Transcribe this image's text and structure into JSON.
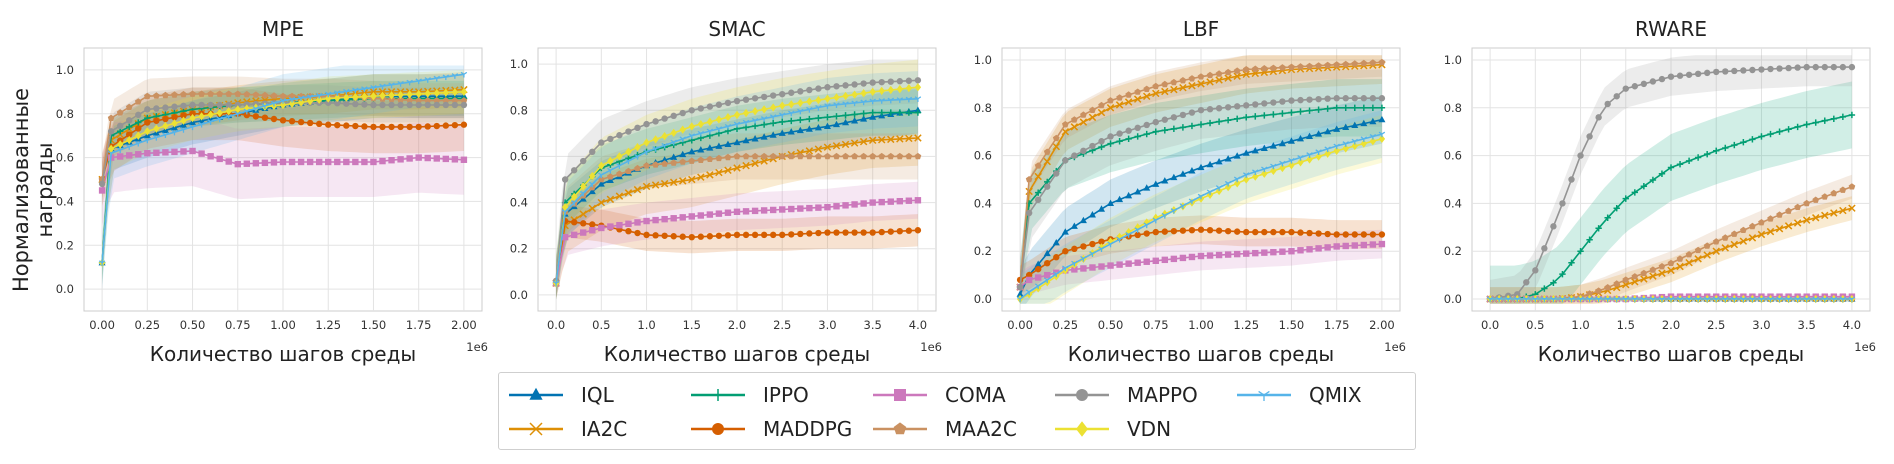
{
  "figure": {
    "ylabel_lines": [
      "Нормализованные",
      "награды"
    ],
    "colors": {
      "IQL": "#0173b2",
      "IA2C": "#de8f05",
      "IPPO": "#029e73",
      "MADDPG": "#d55e00",
      "COMA": "#cc78bc",
      "MAA2C": "#ca9161",
      "MAPPO": "#949494",
      "VDN": "#ece133",
      "QMIX": "#56b4e9"
    },
    "markers": {
      "IQL": "triangle",
      "IA2C": "x",
      "IPPO": "plus",
      "MADDPG": "circle",
      "COMA": "square",
      "MAA2C": "pentagon",
      "MAPPO": "circle",
      "VDN": "diamond",
      "QMIX": "tri-down"
    }
  },
  "legend": {
    "entries": [
      "IQL",
      "IPPO",
      "COMA",
      "MAPPO",
      "QMIX",
      "IA2C",
      "MADDPG",
      "MAA2C",
      "VDN"
    ]
  },
  "chart_data": [
    {
      "type": "line",
      "title": "MPE",
      "xlabel": "Количество шагов среды",
      "x_exponent_label": "1e6",
      "xlim": [
        -0.1,
        2.1
      ],
      "ylim": [
        -0.1,
        1.1
      ],
      "xticks": [
        0.0,
        0.25,
        0.5,
        0.75,
        1.0,
        1.25,
        1.5,
        1.75,
        2.0
      ],
      "xtick_labels": [
        "0.00",
        "0.25",
        "0.50",
        "0.75",
        "1.00",
        "1.25",
        "1.50",
        "1.75",
        "2.00"
      ],
      "yticks": [
        0.0,
        0.2,
        0.4,
        0.6,
        0.8,
        1.0
      ],
      "ytick_labels": [
        "0.0",
        "0.2",
        "0.4",
        "0.6",
        "0.8",
        "1.0"
      ],
      "grid": true,
      "x": [
        0,
        0.05,
        0.25,
        0.5,
        0.75,
        1.0,
        1.25,
        1.5,
        1.75,
        2.0
      ],
      "series": [
        {
          "name": "IQL",
          "values": [
            0.12,
            0.64,
            0.7,
            0.76,
            0.8,
            0.84,
            0.86,
            0.88,
            0.88,
            0.88
          ],
          "band": 0.1
        },
        {
          "name": "IA2C",
          "values": [
            0.5,
            0.68,
            0.78,
            0.82,
            0.85,
            0.87,
            0.88,
            0.9,
            0.9,
            0.91
          ],
          "band": 0.08
        },
        {
          "name": "IPPO",
          "values": [
            0.12,
            0.7,
            0.78,
            0.82,
            0.84,
            0.85,
            0.86,
            0.87,
            0.87,
            0.87
          ],
          "band": 0.08
        },
        {
          "name": "MADDPG",
          "values": [
            0.5,
            0.65,
            0.76,
            0.8,
            0.8,
            0.77,
            0.75,
            0.74,
            0.74,
            0.75
          ],
          "band": 0.12
        },
        {
          "name": "COMA",
          "values": [
            0.45,
            0.6,
            0.62,
            0.63,
            0.57,
            0.58,
            0.58,
            0.58,
            0.6,
            0.59
          ],
          "band": 0.16
        },
        {
          "name": "MAA2C",
          "values": [
            0.5,
            0.78,
            0.88,
            0.89,
            0.89,
            0.88,
            0.88,
            0.87,
            0.86,
            0.86
          ],
          "band": 0.08
        },
        {
          "name": "MAPPO",
          "values": [
            0.48,
            0.72,
            0.82,
            0.84,
            0.84,
            0.85,
            0.85,
            0.84,
            0.84,
            0.84
          ],
          "band": 0.08
        },
        {
          "name": "VDN",
          "values": [
            0.12,
            0.64,
            0.72,
            0.78,
            0.82,
            0.84,
            0.87,
            0.88,
            0.89,
            0.9
          ],
          "band": 0.1
        },
        {
          "name": "QMIX",
          "values": [
            0.12,
            0.62,
            0.68,
            0.74,
            0.8,
            0.86,
            0.89,
            0.92,
            0.95,
            0.98
          ],
          "band": 0.12
        }
      ]
    },
    {
      "type": "line",
      "title": "SMAC",
      "xlabel": "Количество шагов среды",
      "x_exponent_label": "1e6",
      "xlim": [
        -0.2,
        4.2
      ],
      "ylim": [
        -0.07,
        1.07
      ],
      "xticks": [
        0.0,
        0.5,
        1.0,
        1.5,
        2.0,
        2.5,
        3.0,
        3.5,
        4.0
      ],
      "xtick_labels": [
        "0.0",
        "0.5",
        "1.0",
        "1.5",
        "2.0",
        "2.5",
        "3.0",
        "3.5",
        "4.0"
      ],
      "yticks": [
        0.0,
        0.2,
        0.4,
        0.6,
        0.8,
        1.0
      ],
      "ytick_labels": [
        "0.0",
        "0.2",
        "0.4",
        "0.6",
        "0.8",
        "1.0"
      ],
      "grid": true,
      "x": [
        0,
        0.1,
        0.5,
        1.0,
        1.5,
        2.0,
        2.5,
        3.0,
        3.5,
        4.0
      ],
      "series": [
        {
          "name": "IQL",
          "values": [
            0.05,
            0.35,
            0.48,
            0.56,
            0.62,
            0.66,
            0.7,
            0.73,
            0.77,
            0.8
          ],
          "band": 0.1
        },
        {
          "name": "IA2C",
          "values": [
            0.05,
            0.3,
            0.4,
            0.47,
            0.5,
            0.55,
            0.6,
            0.64,
            0.67,
            0.68
          ],
          "band": 0.12
        },
        {
          "name": "IPPO",
          "values": [
            0.05,
            0.4,
            0.55,
            0.62,
            0.67,
            0.72,
            0.75,
            0.77,
            0.79,
            0.79
          ],
          "band": 0.1
        },
        {
          "name": "MADDPG",
          "values": [
            0.06,
            0.32,
            0.3,
            0.26,
            0.25,
            0.26,
            0.26,
            0.27,
            0.27,
            0.28
          ],
          "band": 0.07
        },
        {
          "name": "COMA",
          "values": [
            0.05,
            0.25,
            0.29,
            0.32,
            0.34,
            0.36,
            0.37,
            0.38,
            0.4,
            0.41
          ],
          "band": 0.08
        },
        {
          "name": "MAA2C",
          "values": [
            0.05,
            0.36,
            0.5,
            0.56,
            0.58,
            0.6,
            0.6,
            0.6,
            0.6,
            0.6
          ],
          "band": 0.1
        },
        {
          "name": "MAPPO",
          "values": [
            0.06,
            0.5,
            0.66,
            0.74,
            0.8,
            0.84,
            0.87,
            0.9,
            0.92,
            0.93
          ],
          "band": 0.1
        },
        {
          "name": "VDN",
          "values": [
            0.05,
            0.38,
            0.56,
            0.66,
            0.73,
            0.78,
            0.82,
            0.85,
            0.88,
            0.9
          ],
          "band": 0.12
        },
        {
          "name": "QMIX",
          "values": [
            0.05,
            0.36,
            0.52,
            0.62,
            0.69,
            0.74,
            0.78,
            0.82,
            0.84,
            0.85
          ],
          "band": 0.12
        }
      ]
    },
    {
      "type": "line",
      "title": "LBF",
      "xlabel": "Количество шагов среды",
      "x_exponent_label": "1e6",
      "xlim": [
        -0.1,
        2.1
      ],
      "ylim": [
        -0.05,
        1.05
      ],
      "xticks": [
        0.0,
        0.25,
        0.5,
        0.75,
        1.0,
        1.25,
        1.5,
        1.75,
        2.0
      ],
      "xtick_labels": [
        "0.00",
        "0.25",
        "0.50",
        "0.75",
        "1.00",
        "1.25",
        "1.50",
        "1.75",
        "2.00"
      ],
      "yticks": [
        0.0,
        0.2,
        0.4,
        0.6,
        0.8,
        1.0
      ],
      "ytick_labels": [
        "0.0",
        "0.2",
        "0.4",
        "0.6",
        "0.8",
        "1.0"
      ],
      "grid": true,
      "x": [
        0,
        0.05,
        0.25,
        0.5,
        0.75,
        1.0,
        1.25,
        1.5,
        1.75,
        2.0
      ],
      "series": [
        {
          "name": "IQL",
          "values": [
            0.02,
            0.1,
            0.28,
            0.4,
            0.48,
            0.55,
            0.61,
            0.66,
            0.71,
            0.75
          ],
          "band": 0.1
        },
        {
          "name": "IA2C",
          "values": [
            0.05,
            0.45,
            0.7,
            0.8,
            0.86,
            0.9,
            0.94,
            0.96,
            0.97,
            0.98
          ],
          "band": 0.08
        },
        {
          "name": "IPPO",
          "values": [
            0.05,
            0.4,
            0.58,
            0.65,
            0.7,
            0.73,
            0.76,
            0.78,
            0.8,
            0.8
          ],
          "band": 0.12
        },
        {
          "name": "MADDPG",
          "values": [
            0.08,
            0.1,
            0.2,
            0.25,
            0.28,
            0.29,
            0.28,
            0.28,
            0.27,
            0.27
          ],
          "band": 0.06
        },
        {
          "name": "COMA",
          "values": [
            0.05,
            0.08,
            0.12,
            0.14,
            0.16,
            0.18,
            0.19,
            0.2,
            0.22,
            0.23
          ],
          "band": 0.06
        },
        {
          "name": "MAA2C",
          "values": [
            0.05,
            0.5,
            0.73,
            0.83,
            0.89,
            0.93,
            0.96,
            0.97,
            0.98,
            0.99
          ],
          "band": 0.06
        },
        {
          "name": "MAPPO",
          "values": [
            0.05,
            0.36,
            0.58,
            0.68,
            0.74,
            0.79,
            0.81,
            0.83,
            0.84,
            0.84
          ],
          "band": 0.12
        },
        {
          "name": "VDN",
          "values": [
            0.0,
            0.02,
            0.12,
            0.24,
            0.34,
            0.42,
            0.5,
            0.56,
            0.62,
            0.67
          ],
          "band": 0.1
        },
        {
          "name": "QMIX",
          "values": [
            0.0,
            0.03,
            0.13,
            0.23,
            0.33,
            0.43,
            0.52,
            0.58,
            0.64,
            0.69
          ],
          "band": 0.1
        }
      ]
    },
    {
      "type": "line",
      "title": "RWARE",
      "xlabel": "Количество шагов среды",
      "x_exponent_label": "1e6",
      "xlim": [
        -0.2,
        4.2
      ],
      "ylim": [
        -0.05,
        1.05
      ],
      "xticks": [
        0.0,
        0.5,
        1.0,
        1.5,
        2.0,
        2.5,
        3.0,
        3.5,
        4.0
      ],
      "xtick_labels": [
        "0.0",
        "0.5",
        "1.0",
        "1.5",
        "2.0",
        "2.5",
        "3.0",
        "3.5",
        "4.0"
      ],
      "yticks": [
        0.0,
        0.2,
        0.4,
        0.6,
        0.8,
        1.0
      ],
      "ytick_labels": [
        "0.0",
        "0.2",
        "0.4",
        "0.6",
        "0.8",
        "1.0"
      ],
      "grid": true,
      "x": [
        0,
        0.3,
        0.5,
        0.75,
        1.0,
        1.25,
        1.5,
        2.0,
        2.5,
        3.0,
        3.5,
        4.0
      ],
      "series": [
        {
          "name": "IQL",
          "values": [
            0,
            0,
            0,
            0,
            0,
            0,
            0,
            0,
            0,
            0,
            0,
            0
          ],
          "band": 0.01
        },
        {
          "name": "IA2C",
          "values": [
            0,
            0,
            0,
            0,
            0.01,
            0.03,
            0.06,
            0.12,
            0.2,
            0.27,
            0.33,
            0.38
          ],
          "band": 0.05
        },
        {
          "name": "IPPO",
          "values": [
            0,
            0,
            0.02,
            0.08,
            0.2,
            0.32,
            0.42,
            0.55,
            0.62,
            0.68,
            0.73,
            0.77
          ],
          "band": 0.14
        },
        {
          "name": "MADDPG",
          "values": [
            0,
            0,
            0,
            0,
            0,
            0,
            0,
            0,
            0,
            0,
            0,
            0
          ],
          "band": 0.01
        },
        {
          "name": "COMA",
          "values": [
            0,
            0,
            0,
            0,
            0,
            0,
            0,
            0.01,
            0.01,
            0.01,
            0.01,
            0.01
          ],
          "band": 0.01
        },
        {
          "name": "MAA2C",
          "values": [
            0,
            0,
            0,
            0,
            0.01,
            0.04,
            0.08,
            0.15,
            0.24,
            0.32,
            0.4,
            0.47
          ],
          "band": 0.05
        },
        {
          "name": "MAPPO",
          "values": [
            0,
            0.02,
            0.12,
            0.35,
            0.6,
            0.8,
            0.88,
            0.93,
            0.95,
            0.96,
            0.97,
            0.97
          ],
          "band": 0.08
        },
        {
          "name": "VDN",
          "values": [
            0,
            0,
            0,
            0,
            0,
            0,
            0,
            0,
            0,
            0,
            0,
            0
          ],
          "band": 0.01
        },
        {
          "name": "QMIX",
          "values": [
            0,
            0,
            0,
            0,
            0,
            0,
            0,
            0,
            0,
            0,
            0,
            0
          ],
          "band": 0.01
        }
      ]
    }
  ]
}
